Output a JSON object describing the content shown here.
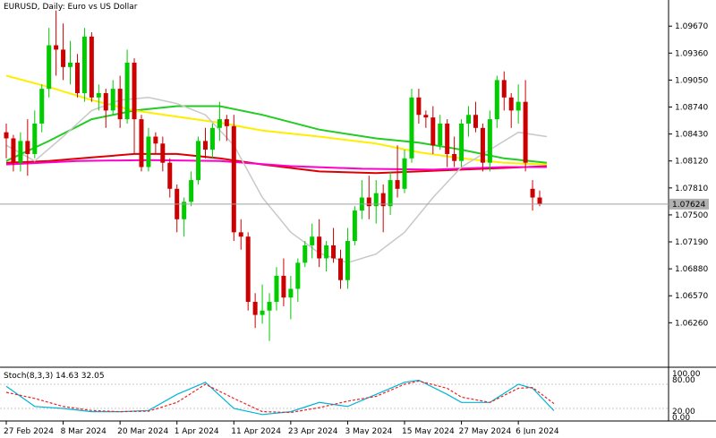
{
  "header": {
    "title": "EURUSD, Daily:  Euro vs US Dollar"
  },
  "current_price_label": "1.07624",
  "stoch": {
    "label": "Stoch(8,3,3) 14.63 32.05",
    "axis_labels": [
      "100.00",
      "80.00",
      "20.00",
      "0.00"
    ]
  },
  "colors": {
    "bull": "#00cc00",
    "bear": "#cc0000",
    "ma_green": "#22cc22",
    "ma_yellow": "#ffee00",
    "ma_red": "#dd0000",
    "ma_magenta": "#ff00cc",
    "ma_gray": "#c8c8c8",
    "stoch_main": "#00b4d8",
    "stoch_signal": "#ee2222",
    "price_badge_bg": "#b0b0b0"
  },
  "chart_data": [
    {
      "type": "candlestick",
      "title": "EURUSD, Daily:  Euro vs US Dollar",
      "ylim": [
        1.058,
        1.0995
      ],
      "y_ticks": [
        "1.09670",
        "1.09360",
        "1.09050",
        "1.08740",
        "1.08430",
        "1.08120",
        "1.07810",
        "1.07500",
        "1.07190",
        "1.06880",
        "1.06570",
        "1.06260"
      ],
      "x_labels": [
        "27 Feb 2024",
        "8 Mar 2024",
        "20 Mar 2024",
        "1 Apr 2024",
        "11 Apr 2024",
        "23 Apr 2024",
        "3 May 2024",
        "15 May 2024",
        "27 May 2024",
        "6 Jun 2024"
      ],
      "x_label_index": [
        0,
        8,
        16,
        24,
        32,
        40,
        48,
        56,
        64,
        72
      ],
      "current_price": 1.07624,
      "candles": [
        [
          1.0845,
          1.0855,
          1.0815,
          1.0838
        ],
        [
          1.0838,
          1.0842,
          1.08,
          1.081
        ],
        [
          1.081,
          1.0845,
          1.08,
          1.0835
        ],
        [
          1.0835,
          1.086,
          1.0795,
          1.082
        ],
        [
          1.082,
          1.087,
          1.0815,
          1.0855
        ],
        [
          1.0855,
          1.09,
          1.0845,
          1.0895
        ],
        [
          1.0895,
          1.0965,
          1.0885,
          1.0945
        ],
        [
          1.0945,
          1.0985,
          1.091,
          1.094
        ],
        [
          1.094,
          1.097,
          1.0905,
          1.092
        ],
        [
          1.092,
          1.095,
          1.09,
          1.0925
        ],
        [
          1.0925,
          1.0935,
          1.0885,
          1.089
        ],
        [
          1.089,
          1.0965,
          1.088,
          1.0955
        ],
        [
          1.0955,
          1.096,
          1.088,
          1.0885
        ],
        [
          1.0885,
          1.09,
          1.087,
          1.089
        ],
        [
          1.089,
          1.0895,
          1.085,
          1.087
        ],
        [
          1.087,
          1.0905,
          1.0865,
          1.0895
        ],
        [
          1.0895,
          1.091,
          1.085,
          1.086
        ],
        [
          1.086,
          1.094,
          1.0855,
          1.0925
        ],
        [
          1.0925,
          1.093,
          1.082,
          1.086
        ],
        [
          1.086,
          1.0865,
          1.08,
          1.0805
        ],
        [
          1.0805,
          1.085,
          1.08,
          1.084
        ],
        [
          1.084,
          1.0845,
          1.082,
          1.0832
        ],
        [
          1.0832,
          1.084,
          1.08,
          1.081
        ],
        [
          1.081,
          1.0815,
          1.077,
          1.078
        ],
        [
          1.078,
          1.0785,
          1.073,
          1.0745
        ],
        [
          1.0745,
          1.077,
          1.0725,
          1.0765
        ],
        [
          1.0765,
          1.08,
          1.076,
          1.079
        ],
        [
          1.079,
          1.084,
          1.0785,
          1.0835
        ],
        [
          1.0835,
          1.085,
          1.0815,
          1.0825
        ],
        [
          1.0825,
          1.0855,
          1.0815,
          1.085
        ],
        [
          1.085,
          1.088,
          1.0835,
          1.086
        ],
        [
          1.086,
          1.0865,
          1.0835,
          1.0852
        ],
        [
          1.0852,
          1.0865,
          1.072,
          1.073
        ],
        [
          1.073,
          1.0745,
          1.071,
          1.0725
        ],
        [
          1.0725,
          1.073,
          1.064,
          1.065
        ],
        [
          1.065,
          1.066,
          1.062,
          1.0635
        ],
        [
          1.0635,
          1.067,
          1.0625,
          1.064
        ],
        [
          1.064,
          1.066,
          1.0605,
          1.065
        ],
        [
          1.065,
          1.069,
          1.064,
          1.068
        ],
        [
          1.068,
          1.07,
          1.0645,
          1.0655
        ],
        [
          1.0655,
          1.068,
          1.063,
          1.0665
        ],
        [
          1.0665,
          1.07,
          1.065,
          1.0695
        ],
        [
          1.0695,
          1.072,
          1.069,
          1.0715
        ],
        [
          1.0715,
          1.074,
          1.07,
          1.0725
        ],
        [
          1.0725,
          1.0745,
          1.069,
          1.07
        ],
        [
          1.07,
          1.072,
          1.0685,
          1.0715
        ],
        [
          1.0715,
          1.0735,
          1.0695,
          1.07
        ],
        [
          1.07,
          1.071,
          1.0665,
          1.0675
        ],
        [
          1.0675,
          1.0735,
          1.0665,
          1.072
        ],
        [
          1.072,
          1.076,
          1.0715,
          1.0755
        ],
        [
          1.0755,
          1.079,
          1.0745,
          1.077
        ],
        [
          1.077,
          1.0795,
          1.0745,
          1.076
        ],
        [
          1.076,
          1.079,
          1.074,
          1.0775
        ],
        [
          1.0775,
          1.0785,
          1.073,
          1.076
        ],
        [
          1.076,
          1.08,
          1.075,
          1.079
        ],
        [
          1.079,
          1.083,
          1.077,
          1.078
        ],
        [
          1.078,
          1.0825,
          1.0775,
          1.0815
        ],
        [
          1.0815,
          1.0895,
          1.081,
          1.0885
        ],
        [
          1.0885,
          1.0895,
          1.0855,
          1.0865
        ],
        [
          1.0865,
          1.087,
          1.085,
          1.0862
        ],
        [
          1.0862,
          1.0875,
          1.082,
          1.083
        ],
        [
          1.083,
          1.0865,
          1.0825,
          1.0855
        ],
        [
          1.0855,
          1.086,
          1.0805,
          1.082
        ],
        [
          1.082,
          1.084,
          1.0805,
          1.0812
        ],
        [
          1.0812,
          1.086,
          1.0805,
          1.0855
        ],
        [
          1.0855,
          1.0875,
          1.084,
          1.0865
        ],
        [
          1.0865,
          1.088,
          1.0845,
          1.085
        ],
        [
          1.085,
          1.0855,
          1.08,
          1.081
        ],
        [
          1.081,
          1.087,
          1.08,
          1.086
        ],
        [
          1.086,
          1.091,
          1.085,
          1.0905
        ],
        [
          1.0905,
          1.0915,
          1.087,
          1.0885
        ],
        [
          1.0885,
          1.089,
          1.085,
          1.087
        ],
        [
          1.087,
          1.09,
          1.0855,
          1.088
        ],
        [
          1.088,
          1.0905,
          1.08,
          1.081
        ],
        [
          1.078,
          1.079,
          1.0755,
          1.077
        ],
        [
          1.077,
          1.0778,
          1.076,
          1.07624
        ]
      ],
      "moving_averages": [
        {
          "color": "ma_green",
          "values": [
            [
              0,
              1.0812
            ],
            [
              6,
              1.0835
            ],
            [
              12,
              1.086
            ],
            [
              18,
              1.087
            ],
            [
              24,
              1.0875
            ],
            [
              30,
              1.0875
            ],
            [
              36,
              1.0865
            ],
            [
              44,
              1.0848
            ],
            [
              52,
              1.0838
            ],
            [
              58,
              1.0833
            ],
            [
              64,
              1.0825
            ],
            [
              70,
              1.0815
            ],
            [
              76,
              1.081
            ]
          ]
        },
        {
          "color": "ma_yellow",
          "values": [
            [
              0,
              1.091
            ],
            [
              6,
              1.0897
            ],
            [
              12,
              1.0882
            ],
            [
              18,
              1.087
            ],
            [
              24,
              1.0863
            ],
            [
              30,
              1.0856
            ],
            [
              36,
              1.0847
            ],
            [
              44,
              1.084
            ],
            [
              52,
              1.0832
            ],
            [
              58,
              1.0822
            ],
            [
              64,
              1.0815
            ],
            [
              70,
              1.081
            ],
            [
              76,
              1.0808
            ]
          ]
        },
        {
          "color": "ma_red",
          "values": [
            [
              0,
              1.081
            ],
            [
              6,
              1.0812
            ],
            [
              12,
              1.0816
            ],
            [
              18,
              1.082
            ],
            [
              24,
              1.082
            ],
            [
              30,
              1.0815
            ],
            [
              36,
              1.0808
            ],
            [
              44,
              1.08
            ],
            [
              52,
              1.0798
            ],
            [
              58,
              1.08
            ],
            [
              64,
              1.0802
            ],
            [
              70,
              1.0804
            ],
            [
              76,
              1.0806
            ]
          ]
        },
        {
          "color": "ma_magenta",
          "values": [
            [
              0,
              1.0808
            ],
            [
              10,
              1.0812
            ],
            [
              20,
              1.0813
            ],
            [
              30,
              1.0812
            ],
            [
              40,
              1.0806
            ],
            [
              50,
              1.0803
            ],
            [
              60,
              1.0802
            ],
            [
              70,
              1.0805
            ],
            [
              76,
              1.0805
            ]
          ]
        },
        {
          "color": "ma_gray",
          "values": [
            [
              0,
              1.083
            ],
            [
              4,
              1.0812
            ],
            [
              8,
              1.084
            ],
            [
              12,
              1.087
            ],
            [
              16,
              1.0882
            ],
            [
              20,
              1.0885
            ],
            [
              24,
              1.0878
            ],
            [
              28,
              1.0865
            ],
            [
              32,
              1.083
            ],
            [
              36,
              1.077
            ],
            [
              40,
              1.073
            ],
            [
              44,
              1.0706
            ],
            [
              48,
              1.0695
            ],
            [
              52,
              1.0705
            ],
            [
              56,
              1.073
            ],
            [
              60,
              1.077
            ],
            [
              64,
              1.0805
            ],
            [
              68,
              1.0825
            ],
            [
              72,
              1.0845
            ],
            [
              76,
              1.084
            ]
          ]
        }
      ]
    },
    {
      "type": "line",
      "title": "Stoch(8,3,3) 14.63 32.05",
      "ylim": [
        0,
        100
      ],
      "levels": [
        80,
        20
      ],
      "series": [
        {
          "color": "stoch_main",
          "values": [
            [
              0,
              75
            ],
            [
              4,
              25
            ],
            [
              8,
              20
            ],
            [
              12,
              12
            ],
            [
              16,
              12
            ],
            [
              20,
              15
            ],
            [
              24,
              55
            ],
            [
              28,
              85
            ],
            [
              32,
              20
            ],
            [
              36,
              5
            ],
            [
              40,
              12
            ],
            [
              44,
              35
            ],
            [
              48,
              25
            ],
            [
              52,
              55
            ],
            [
              56,
              85
            ],
            [
              58,
              90
            ],
            [
              62,
              55
            ],
            [
              64,
              35
            ],
            [
              68,
              35
            ],
            [
              72,
              80
            ],
            [
              74,
              70
            ],
            [
              77,
              14.63
            ]
          ]
        },
        {
          "color": "stoch_signal",
          "values": [
            [
              0,
              60
            ],
            [
              4,
              45
            ],
            [
              8,
              25
            ],
            [
              12,
              15
            ],
            [
              16,
              12
            ],
            [
              20,
              13
            ],
            [
              24,
              35
            ],
            [
              28,
              80
            ],
            [
              32,
              45
            ],
            [
              36,
              12
            ],
            [
              40,
              10
            ],
            [
              44,
              22
            ],
            [
              48,
              38
            ],
            [
              52,
              50
            ],
            [
              56,
              80
            ],
            [
              58,
              88
            ],
            [
              62,
              70
            ],
            [
              64,
              48
            ],
            [
              68,
              35
            ],
            [
              72,
              70
            ],
            [
              74,
              72
            ],
            [
              77,
              32.05
            ]
          ]
        }
      ]
    }
  ]
}
